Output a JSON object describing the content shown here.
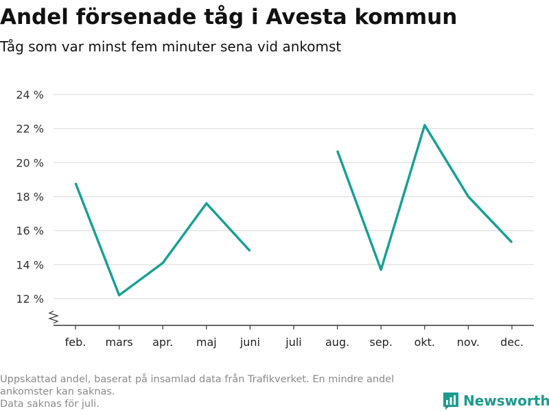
{
  "header": {
    "title": "Andel försenade tåg i Avesta kommun",
    "subtitle": "Tåg som var minst fem minuter sena vid ankomst"
  },
  "footer": {
    "note_line1": "Uppskattad andel, baserat på insamlad data från Trafikverket. En mindre andel ankomster kan saknas.",
    "note_line2": "Data saknas för juli."
  },
  "brand": {
    "name": "Newsworthy",
    "icon": "bar-chart-logo-icon",
    "color": "#1c9b8e"
  },
  "chart_data": {
    "type": "line",
    "title": "Andel försenade tåg i Avesta kommun",
    "subtitle": "Tåg som var minst fem minuter sena vid ankomst",
    "xlabel": "",
    "ylabel": "",
    "categories": [
      "feb.",
      "mars",
      "apr.",
      "maj",
      "juni",
      "juli",
      "aug.",
      "sep.",
      "okt.",
      "nov.",
      "dec."
    ],
    "series": [
      {
        "values": [
          18.8,
          12.2,
          14.1,
          17.6,
          14.8,
          null,
          20.7,
          13.7,
          22.2,
          18.0,
          15.3
        ],
        "color": "#17a096"
      }
    ],
    "ylim": [
      11,
      24
    ],
    "yticks": [
      12,
      14,
      16,
      18,
      20,
      22,
      24
    ],
    "ytick_labels": [
      "12 %",
      "14 %",
      "16 %",
      "18 %",
      "20 %",
      "22 %",
      "24 %"
    ],
    "axis_break": true,
    "grid": true,
    "legend": "none"
  }
}
